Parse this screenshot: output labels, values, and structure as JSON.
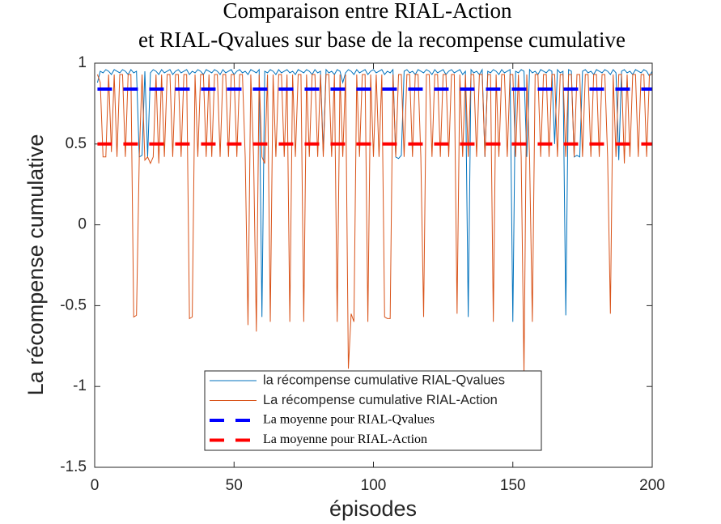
{
  "chart_data": {
    "type": "line",
    "title": [
      "Comparaison entre RIAL-Action",
      "et RIAL-Qvalues sur base de la recompense cumulative"
    ],
    "xlabel": "épisodes",
    "ylabel": "La récompense cumulative",
    "xlim": [
      0,
      200
    ],
    "ylim": [
      -1.5,
      1
    ],
    "xticks": [
      0,
      50,
      100,
      150,
      200
    ],
    "yticks": [
      -1.5,
      -1,
      -0.5,
      0,
      0.5,
      1
    ],
    "x": [
      1,
      2,
      3,
      4,
      5,
      6,
      7,
      8,
      9,
      10,
      11,
      12,
      13,
      14,
      15,
      16,
      17,
      18,
      19,
      20,
      21,
      22,
      23,
      24,
      25,
      26,
      27,
      28,
      29,
      30,
      31,
      32,
      33,
      34,
      35,
      36,
      37,
      38,
      39,
      40,
      41,
      42,
      43,
      44,
      45,
      46,
      47,
      48,
      49,
      50,
      51,
      52,
      53,
      54,
      55,
      56,
      57,
      58,
      59,
      60,
      61,
      62,
      63,
      64,
      65,
      66,
      67,
      68,
      69,
      70,
      71,
      72,
      73,
      74,
      75,
      76,
      77,
      78,
      79,
      80,
      81,
      82,
      83,
      84,
      85,
      86,
      87,
      88,
      89,
      90,
      91,
      92,
      93,
      94,
      95,
      96,
      97,
      98,
      99,
      100,
      101,
      102,
      103,
      104,
      105,
      106,
      107,
      108,
      109,
      110,
      111,
      112,
      113,
      114,
      115,
      116,
      117,
      118,
      119,
      120,
      121,
      122,
      123,
      124,
      125,
      126,
      127,
      128,
      129,
      130,
      131,
      132,
      133,
      134,
      135,
      136,
      137,
      138,
      139,
      140,
      141,
      142,
      143,
      144,
      145,
      146,
      147,
      148,
      149,
      150,
      151,
      152,
      153,
      154,
      155,
      156,
      157,
      158,
      159,
      160,
      161,
      162,
      163,
      164,
      165,
      166,
      167,
      168,
      169,
      170,
      171,
      172,
      173,
      174,
      175,
      176,
      177,
      178,
      179,
      180,
      181,
      182,
      183,
      184,
      185,
      186,
      187,
      188,
      189,
      190,
      191,
      192,
      193,
      194,
      195,
      196,
      197,
      198,
      199,
      200
    ],
    "series": [
      {
        "name": "la récompense cumulative RIAL-Qvalues",
        "color": "#0072bd",
        "values": [
          0.88,
          0.95,
          0.94,
          0.96,
          0.95,
          0.93,
          0.96,
          0.95,
          0.94,
          0.96,
          0.95,
          0.93,
          0.96,
          0.94,
          0.95,
          0.42,
          0.43,
          0.95,
          0.42,
          0.94,
          0.96,
          0.95,
          0.93,
          0.96,
          0.94,
          0.95,
          0.96,
          0.93,
          0.95,
          0.96,
          0.94,
          0.95,
          0.96,
          0.93,
          0.95,
          0.94,
          0.96,
          0.95,
          0.93,
          0.96,
          0.95,
          0.94,
          0.96,
          0.95,
          0.93,
          0.96,
          0.94,
          0.95,
          0.96,
          0.93,
          0.95,
          0.96,
          0.94,
          0.95,
          0.93,
          0.96,
          0.95,
          0.94,
          0.96,
          -0.57,
          0.95,
          0.94,
          0.96,
          0.95,
          0.93,
          0.96,
          0.94,
          0.95,
          0.96,
          0.94,
          0.95,
          0.93,
          0.96,
          0.95,
          0.94,
          0.96,
          0.95,
          0.93,
          0.96,
          0.94,
          0.95,
          0.45,
          0.96,
          0.94,
          0.95,
          0.93,
          0.96,
          0.95,
          0.88,
          0.94,
          0.96,
          0.95,
          0.93,
          0.96,
          0.94,
          0.95,
          0.96,
          0.93,
          0.95,
          0.96,
          0.94,
          0.95,
          0.96,
          0.93,
          0.95,
          0.94,
          0.96,
          0.42,
          0.41,
          0.43,
          0.95,
          0.96,
          0.94,
          0.95,
          0.93,
          0.96,
          0.95,
          0.94,
          0.96,
          0.95,
          0.93,
          0.96,
          0.94,
          0.95,
          0.96,
          0.93,
          0.95,
          0.96,
          0.94,
          0.95,
          0.96,
          0.93,
          0.95,
          -0.57,
          0.96,
          0.94,
          0.95,
          0.93,
          0.96,
          0.42,
          0.95,
          0.94,
          0.96,
          0.95,
          0.93,
          0.96,
          0.94,
          0.95,
          0.96,
          -0.6,
          0.95,
          0.94,
          0.96,
          0.95,
          0.42,
          0.96,
          0.94,
          0.95,
          0.93,
          0.96,
          0.95,
          0.94,
          0.96,
          0.95,
          0.5,
          0.96,
          0.94,
          0.95,
          -0.56,
          0.96,
          0.95,
          0.42,
          0.43,
          0.42,
          0.95,
          0.96,
          0.94,
          0.95,
          0.93,
          0.96,
          0.95,
          0.94,
          0.96,
          0.95,
          0.93,
          0.96,
          0.94,
          0.4,
          0.95,
          0.96,
          0.94,
          0.95,
          0.93,
          0.96,
          0.95,
          0.94,
          0.96,
          0.95,
          0.92,
          0.95
        ]
      },
      {
        "name": "La récompense cumulative RIAL-Action",
        "color": "#d95319",
        "values": [
          0.93,
          0.88,
          0.42,
          0.42,
          0.93,
          0.45,
          0.93,
          0.42,
          0.93,
          0.93,
          0.42,
          0.93,
          0.93,
          -0.57,
          -0.56,
          0.42,
          0.93,
          0.4,
          0.42,
          0.38,
          0.42,
          0.93,
          0.38,
          0.93,
          0.42,
          0.93,
          0.93,
          0.42,
          0.93,
          0.93,
          0.42,
          0.93,
          0.93,
          -0.58,
          -0.57,
          0.93,
          0.42,
          0.93,
          0.93,
          0.42,
          0.93,
          0.42,
          0.93,
          0.93,
          0.42,
          0.93,
          0.93,
          0.42,
          0.93,
          0.93,
          0.42,
          0.93,
          0.93,
          0.42,
          -0.62,
          0.93,
          0.42,
          -0.66,
          0.93,
          0.42,
          0.38,
          0.93,
          -0.6,
          0.93,
          0.42,
          0.93,
          0.93,
          0.42,
          0.93,
          -0.6,
          0.93,
          0.42,
          0.93,
          0.93,
          -0.6,
          0.93,
          0.42,
          0.93,
          0.93,
          0.42,
          0.93,
          0.42,
          0.93,
          0.93,
          0.42,
          0.93,
          -0.6,
          0.93,
          0.42,
          0.93,
          -0.89,
          -0.55,
          -0.6,
          0.93,
          0.42,
          0.93,
          0.93,
          -0.6,
          0.93,
          0.42,
          0.93,
          0.42,
          0.93,
          -0.57,
          -0.58,
          -0.58,
          0.93,
          0.42,
          0.93,
          0.93,
          0.42,
          0.93,
          0.93,
          0.42,
          0.93,
          0.93,
          0.42,
          -0.57,
          0.93,
          0.93,
          0.42,
          0.93,
          0.93,
          0.42,
          0.93,
          0.93,
          0.42,
          0.93,
          0.93,
          -0.55,
          0.93,
          0.42,
          0.93,
          0.42,
          0.93,
          0.93,
          0.42,
          0.93,
          0.93,
          0.42,
          0.93,
          0.93,
          -0.6,
          0.93,
          0.42,
          0.93,
          0.93,
          0.42,
          0.93,
          0.93,
          0.42,
          0.93,
          0.42,
          -0.92,
          0.93,
          0.42,
          -0.6,
          0.93,
          0.93,
          0.42,
          0.93,
          0.93,
          0.42,
          0.93,
          0.93,
          0.42,
          0.93,
          0.93,
          0.42,
          0.93,
          0.93,
          0.42,
          0.93,
          0.93,
          0.42,
          0.93,
          0.93,
          0.42,
          0.93,
          0.93,
          0.42,
          0.93,
          0.93,
          0.42,
          -0.55,
          0.93,
          0.42,
          0.93,
          0.93,
          0.38,
          0.93,
          0.42,
          0.93,
          0.93,
          0.42,
          0.93,
          0.93,
          0.42,
          0.93,
          0.93
        ]
      },
      {
        "name": "La moyenne pour RIAL-Qvalues",
        "color": "#0000ff",
        "dashed": true,
        "x": [
          1,
          200
        ],
        "values": [
          0.84,
          0.84
        ]
      },
      {
        "name": "La moyenne pour RIAL-Action",
        "color": "#ff0000",
        "dashed": true,
        "x": [
          1,
          200
        ],
        "values": [
          0.5,
          0.5
        ]
      }
    ]
  }
}
